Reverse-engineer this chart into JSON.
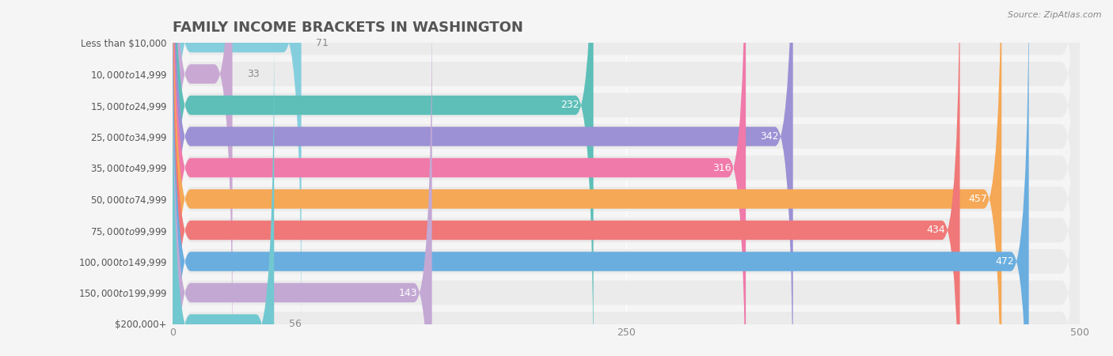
{
  "title": "FAMILY INCOME BRACKETS IN WASHINGTON",
  "source": "Source: ZipAtlas.com",
  "categories": [
    "Less than $10,000",
    "$10,000 to $14,999",
    "$15,000 to $24,999",
    "$25,000 to $34,999",
    "$35,000 to $49,999",
    "$50,000 to $74,999",
    "$75,000 to $99,999",
    "$100,000 to $149,999",
    "$150,000 to $199,999",
    "$200,000+"
  ],
  "values": [
    71,
    33,
    232,
    342,
    316,
    457,
    434,
    472,
    143,
    56
  ],
  "bar_colors": [
    "#85CEDE",
    "#C9A8D4",
    "#5DBFB8",
    "#9B91D4",
    "#F07AAA",
    "#F5A855",
    "#F07878",
    "#6AAEE0",
    "#C3A8D4",
    "#72C8D0"
  ],
  "xlim": [
    0,
    500
  ],
  "xticks": [
    0,
    250,
    500
  ],
  "background_color": "#f5f5f5",
  "bar_bg_color": "#ebebeb",
  "title_color": "#555555",
  "label_color": "#555555",
  "value_color_inside": "#ffffff",
  "value_color_outside": "#888888"
}
